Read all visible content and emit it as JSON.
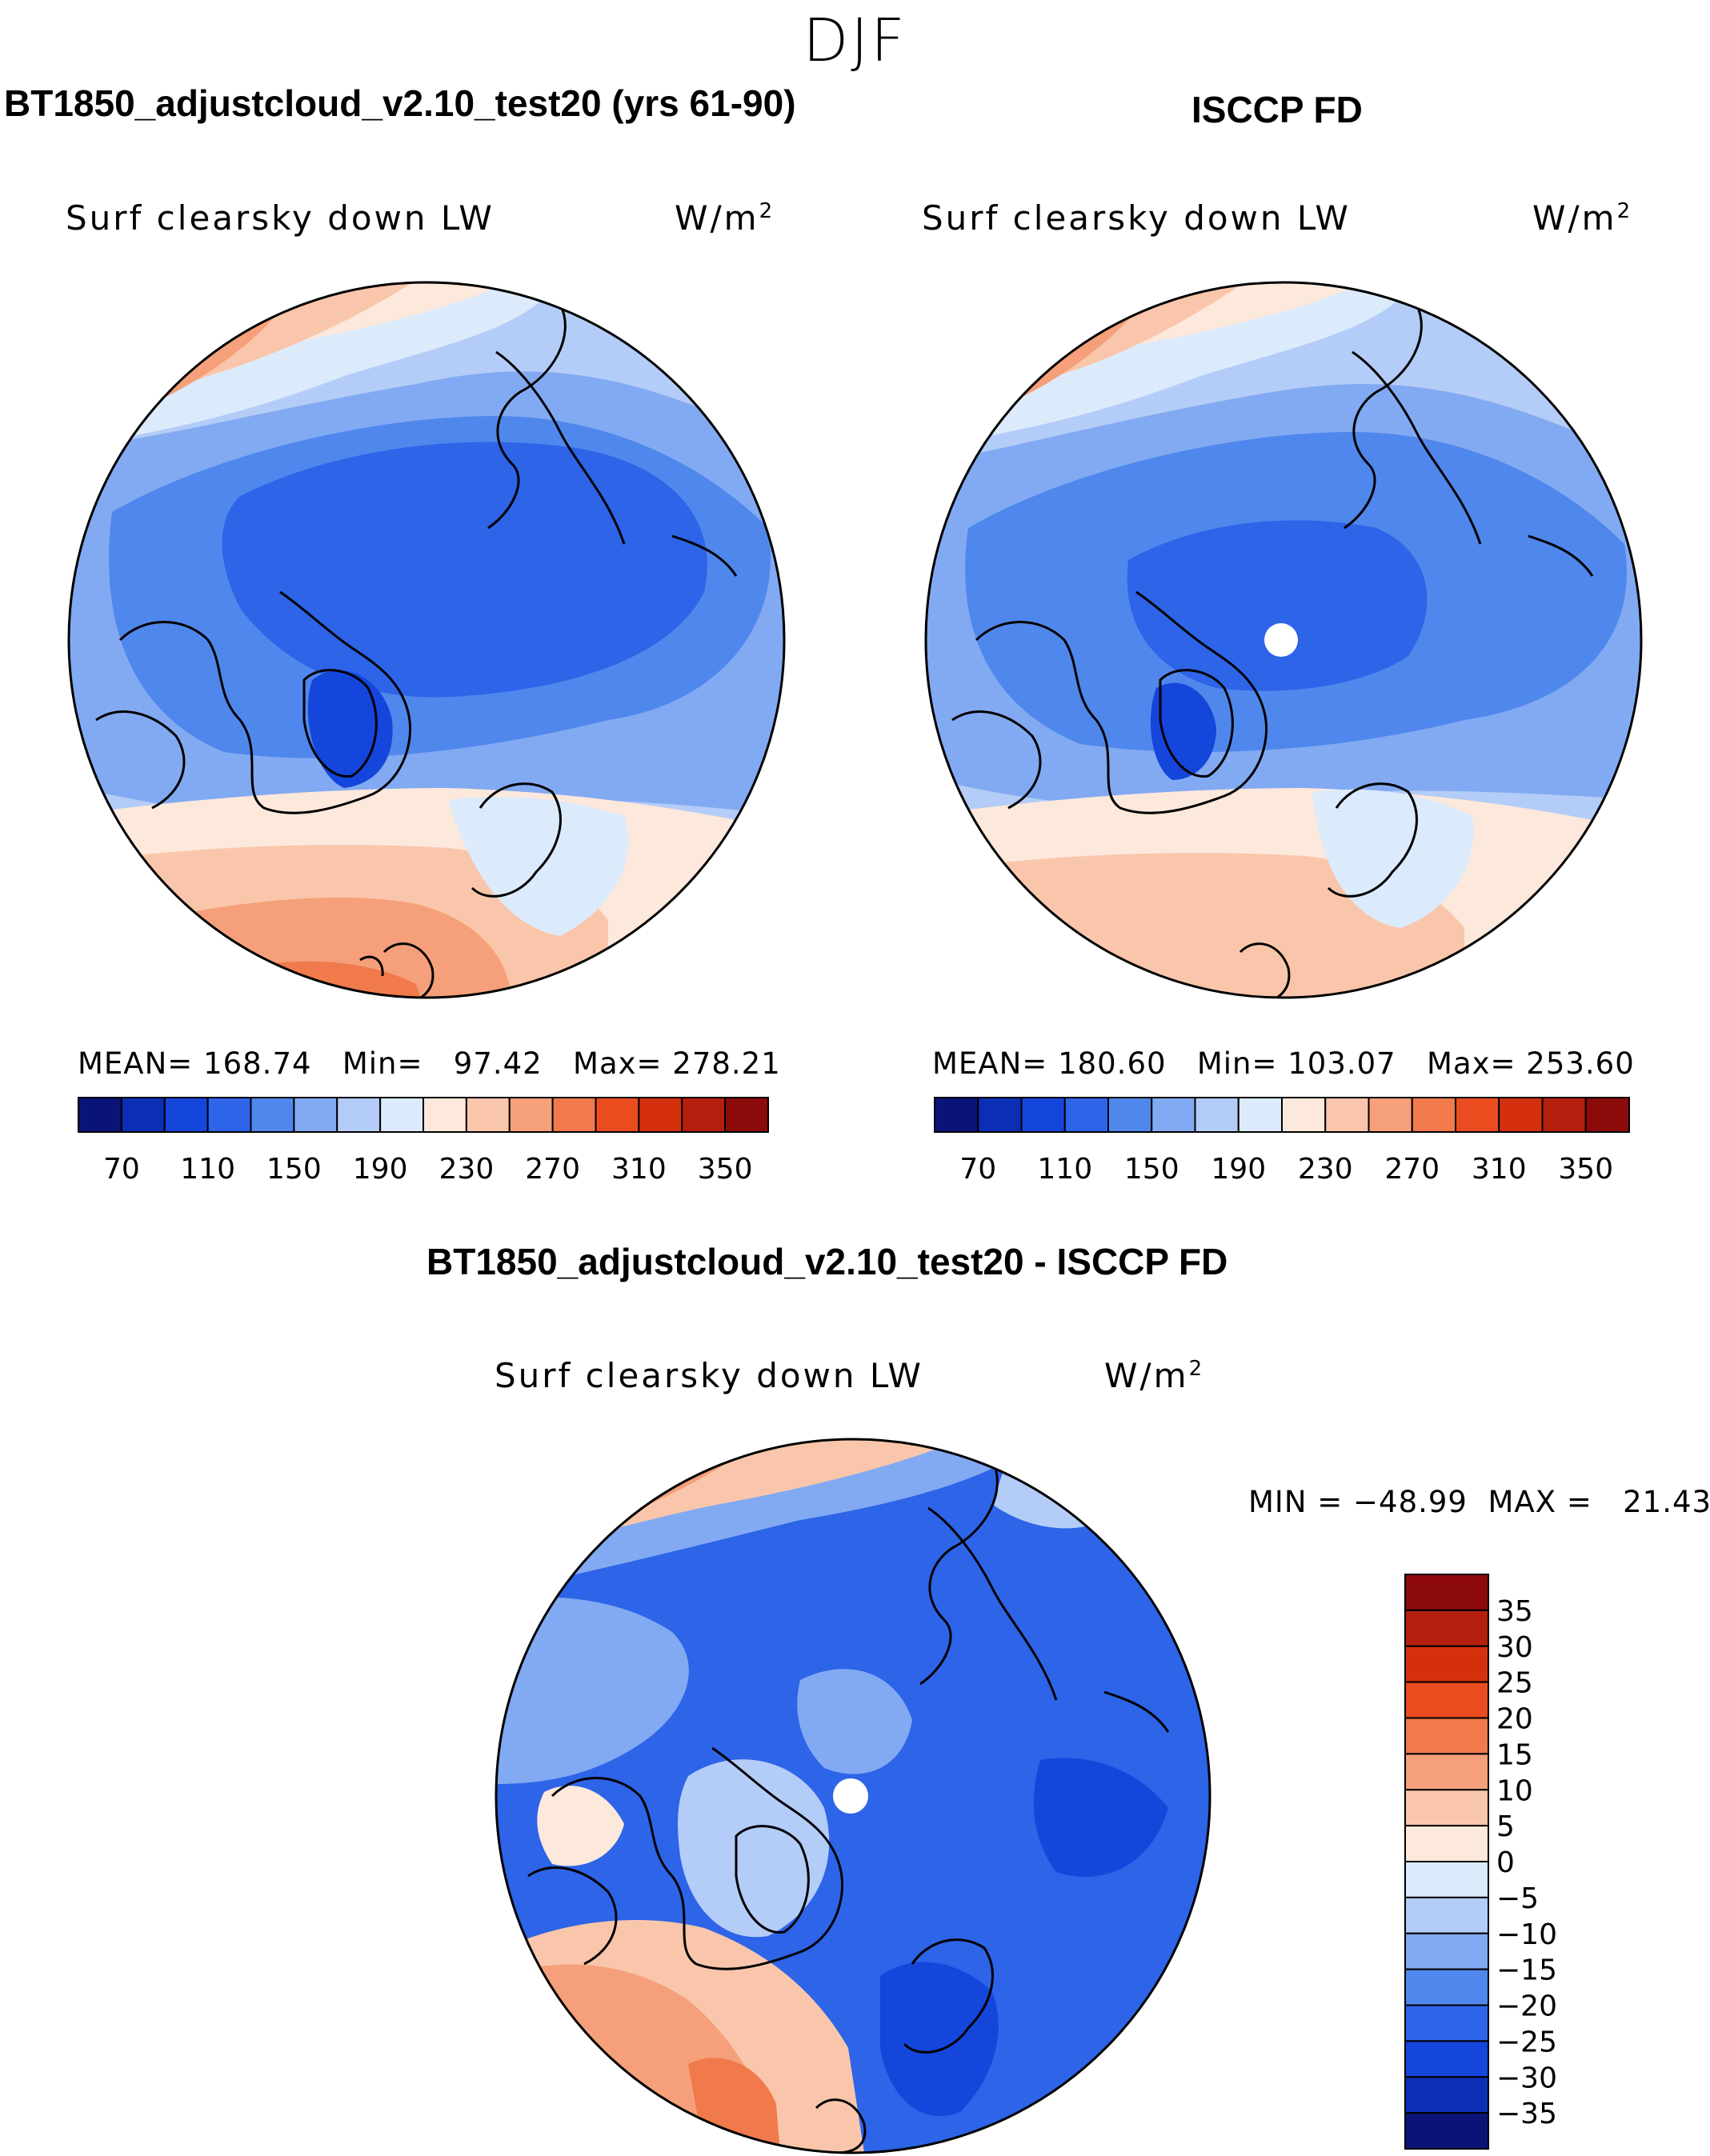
{
  "season": "DJF",
  "panels": [
    {
      "title": "BT1850_adjustcloud_v2.10_test20 (yrs 61-90)",
      "variable": "Surf clearsky down LW",
      "units": "W/m",
      "units_exp": "2",
      "stats": {
        "mean_label": "MEAN=",
        "mean": "168.74",
        "min_label": "Min=",
        "min": "97.42",
        "max_label": "Max=",
        "max": "278.21"
      }
    },
    {
      "title": "ISCCP FD",
      "variable": "Surf clearsky down LW",
      "units": "W/m",
      "units_exp": "2",
      "stats": {
        "mean_label": "MEAN=",
        "mean": "180.60",
        "min_label": "Min=",
        "min": "103.07",
        "max_label": "Max=",
        "max": "253.60"
      }
    },
    {
      "title": "BT1850_adjustcloud_v2.10_test20 - ISCCP FD",
      "variable": "Surf clearsky down LW",
      "units": "W/m",
      "units_exp": "2",
      "stats": {
        "text": "MIN = −48.99  MAX =   21.43"
      }
    }
  ],
  "chart_data": [
    {
      "type": "heatmap",
      "projection": "north-polar-stereographic",
      "title": "BT1850_adjustcloud_v2.10_test20 (yrs 61-90)",
      "variable": "Surf clearsky down LW",
      "units": "W/m^2",
      "mean": 168.74,
      "min": 97.42,
      "max": 278.21,
      "colorbar": {
        "levels": [
          70,
          90,
          110,
          130,
          150,
          170,
          190,
          210,
          230,
          250,
          270,
          290,
          310,
          330,
          350
        ],
        "tick_labels": [
          "70",
          "110",
          "150",
          "190",
          "230",
          "270",
          "310",
          "350"
        ],
        "colors": [
          "#0a1478",
          "#0b2fb4",
          "#1446dc",
          "#2d64e8",
          "#5087ec",
          "#82aaf2",
          "#b4ccf8",
          "#dcebfc",
          "#fde8dc",
          "#fac6ab",
          "#f5a07a",
          "#f07a4c",
          "#eb4c1f",
          "#d4300e",
          "#b4200d",
          "#8c0a0a"
        ]
      }
    },
    {
      "type": "heatmap",
      "projection": "north-polar-stereographic",
      "title": "ISCCP FD",
      "variable": "Surf clearsky down LW",
      "units": "W/m^2",
      "mean": 180.6,
      "min": 103.07,
      "max": 253.6,
      "colorbar": {
        "levels": [
          70,
          90,
          110,
          130,
          150,
          170,
          190,
          210,
          230,
          250,
          270,
          290,
          310,
          330,
          350
        ],
        "tick_labels": [
          "70",
          "110",
          "150",
          "190",
          "230",
          "270",
          "310",
          "350"
        ],
        "colors": [
          "#0a1478",
          "#0b2fb4",
          "#1446dc",
          "#2d64e8",
          "#5087ec",
          "#82aaf2",
          "#b4ccf8",
          "#dcebfc",
          "#fde8dc",
          "#fac6ab",
          "#f5a07a",
          "#f07a4c",
          "#eb4c1f",
          "#d4300e",
          "#b4200d",
          "#8c0a0a"
        ]
      }
    },
    {
      "type": "heatmap",
      "projection": "north-polar-stereographic",
      "title": "BT1850_adjustcloud_v2.10_test20 - ISCCP FD",
      "variable": "Surf clearsky down LW",
      "units": "W/m^2",
      "min": -48.99,
      "max": 21.43,
      "colorbar": {
        "levels": [
          35,
          30,
          25,
          20,
          15,
          10,
          5,
          0,
          -5,
          -10,
          -15,
          -20,
          -25,
          -30,
          -35
        ],
        "tick_labels": [
          "35",
          "30",
          "25",
          "20",
          "15",
          "10",
          "5",
          "0",
          "−5",
          "−10",
          "−15",
          "−20",
          "−25",
          "−30",
          "−35"
        ],
        "colors": [
          "#8c0a0a",
          "#b4200d",
          "#d4300e",
          "#eb4c1f",
          "#f07a4c",
          "#f5a07a",
          "#fac6ab",
          "#fde8dc",
          "#dcebfc",
          "#b4ccf8",
          "#82aaf2",
          "#5087ec",
          "#2d64e8",
          "#1446dc",
          "#0b2fb4",
          "#0a1478"
        ]
      }
    }
  ]
}
